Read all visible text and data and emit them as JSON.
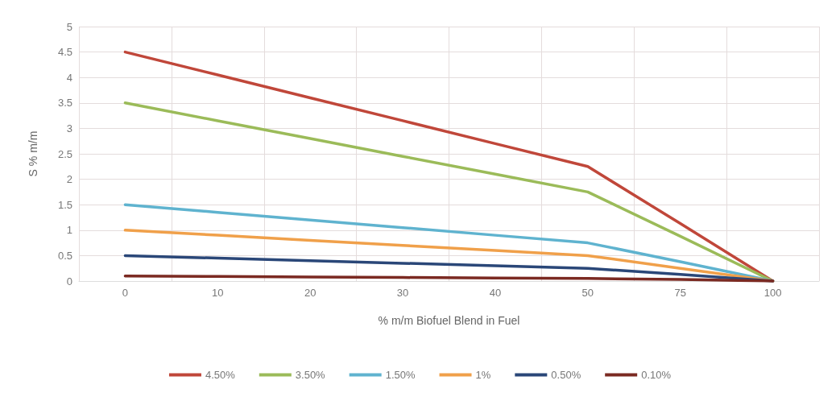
{
  "chart_data": {
    "type": "line",
    "xlabel": "% m/m Biofuel Blend in Fuel",
    "ylabel": "S % m/m",
    "categories": [
      "0",
      "10",
      "20",
      "30",
      "40",
      "50",
      "75",
      "100"
    ],
    "series": [
      {
        "name": "4.50%",
        "color": "#c0473a",
        "values": [
          4.5,
          4.05,
          3.6,
          3.15,
          2.7,
          2.25,
          1.13,
          0
        ]
      },
      {
        "name": "3.50%",
        "color": "#9bbb59",
        "values": [
          3.5,
          3.15,
          2.8,
          2.45,
          2.1,
          1.75,
          0.88,
          0
        ]
      },
      {
        "name": "1.50%",
        "color": "#5fb3cf",
        "values": [
          1.5,
          1.35,
          1.2,
          1.05,
          0.9,
          0.75,
          0.38,
          0
        ]
      },
      {
        "name": "1%",
        "color": "#f0a04a",
        "values": [
          1,
          0.9,
          0.8,
          0.7,
          0.6,
          0.5,
          0.25,
          0
        ]
      },
      {
        "name": "0.50%",
        "color": "#2a4778",
        "values": [
          0.5,
          0.45,
          0.4,
          0.35,
          0.3,
          0.25,
          0.13,
          0
        ]
      },
      {
        "name": "0.10%",
        "color": "#7b2a22",
        "values": [
          0.1,
          0.09,
          0.08,
          0.07,
          0.06,
          0.05,
          0.03,
          0
        ]
      }
    ],
    "ylim": [
      0,
      5
    ],
    "yticks": [
      0,
      0.5,
      1,
      1.5,
      2,
      2.5,
      3,
      3.5,
      4,
      4.5,
      5
    ],
    "grid": true,
    "legend": "bottom",
    "marker": "none",
    "line_style": "solid"
  }
}
